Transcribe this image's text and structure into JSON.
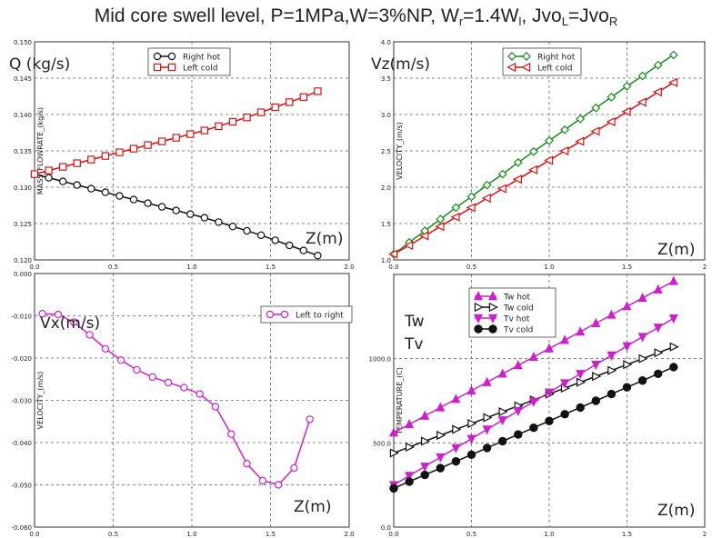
{
  "title": {
    "main": "Mid core swell level, P=1MPa,W=3%NP, W",
    "wr_sub": "r",
    "mid": "=1.4W",
    "wl_sub": "l",
    "jvo1": ", Jvo",
    "jvoL_sub": "L",
    "jvo2": "=Jvo",
    "jvoR_sub": "R"
  },
  "chart_data": [
    {
      "id": "q",
      "type": "line",
      "corner_label": "Q (kg/s)",
      "corner_label2": "",
      "xlabel_inline": "Z(m)",
      "ylabel": "MASS_FLOWRATE_(kg/s)",
      "xlim": [
        0,
        2.0
      ],
      "ylim": [
        0.12,
        0.15
      ],
      "xticks": [
        0.0,
        0.5,
        1.0,
        1.5,
        2.0
      ],
      "xtick_labels": [
        "0.0",
        "0.5",
        "1.0",
        "1.5",
        "2.0"
      ],
      "yticks": [
        0.12,
        0.125,
        0.13,
        0.135,
        0.14,
        0.145,
        0.15
      ],
      "ytick_labels": [
        "0.120",
        "0.125",
        "0.130",
        "0.135",
        "0.140",
        "0.145",
        "0.150"
      ],
      "grid": true,
      "legend_position": "top-center",
      "series": [
        {
          "name": "Right hot",
          "color": "#111111",
          "marker": "circle",
          "x": [
            0.0,
            0.09,
            0.18,
            0.27,
            0.36,
            0.45,
            0.54,
            0.63,
            0.72,
            0.81,
            0.9,
            0.99,
            1.08,
            1.17,
            1.26,
            1.35,
            1.44,
            1.53,
            1.62,
            1.71,
            1.8
          ],
          "y": [
            0.1318,
            0.1313,
            0.1308,
            0.1303,
            0.1298,
            0.1293,
            0.1288,
            0.1283,
            0.1278,
            0.1273,
            0.1268,
            0.1263,
            0.1258,
            0.1252,
            0.1246,
            0.124,
            0.1234,
            0.1227,
            0.122,
            0.1213,
            0.1206
          ]
        },
        {
          "name": "Left cold",
          "color": "#dd1111",
          "marker": "square",
          "x": [
            0.0,
            0.09,
            0.18,
            0.27,
            0.36,
            0.45,
            0.54,
            0.63,
            0.72,
            0.81,
            0.9,
            0.99,
            1.08,
            1.17,
            1.26,
            1.35,
            1.44,
            1.53,
            1.62,
            1.71,
            1.8
          ],
          "y": [
            0.1318,
            0.1323,
            0.1328,
            0.1333,
            0.1338,
            0.1343,
            0.1348,
            0.1353,
            0.1358,
            0.1363,
            0.1368,
            0.1373,
            0.1378,
            0.1384,
            0.139,
            0.1396,
            0.1403,
            0.141,
            0.1417,
            0.1424,
            0.1432
          ]
        }
      ]
    },
    {
      "id": "vz",
      "type": "line",
      "corner_label": "Vz(m/s)",
      "corner_label2": "",
      "xlabel_inline": "Z(m)",
      "ylabel": "VELOCITY_(m/s)",
      "xlim": [
        0,
        2.0
      ],
      "ylim": [
        1.0,
        4.0
      ],
      "xticks": [
        0.0,
        0.5,
        1.0,
        1.5,
        2.0
      ],
      "xtick_labels": [
        "0.0",
        "0.5",
        "1.0",
        "1.5",
        "2"
      ],
      "yticks": [
        1.0,
        1.5,
        2.0,
        2.5,
        3.0,
        3.5,
        4.0
      ],
      "ytick_labels": [
        "1.0",
        "1.5",
        "2.0",
        "2.5",
        "3.0",
        "3.5",
        "4.0"
      ],
      "grid": true,
      "legend_position": "top-center",
      "series": [
        {
          "name": "Right hot",
          "color": "#1a8c1a",
          "marker": "diamond",
          "x": [
            0.0,
            0.1,
            0.2,
            0.3,
            0.4,
            0.5,
            0.6,
            0.7,
            0.8,
            0.9,
            1.0,
            1.1,
            1.2,
            1.3,
            1.4,
            1.5,
            1.6,
            1.7,
            1.8
          ],
          "y": [
            1.08,
            1.24,
            1.4,
            1.56,
            1.72,
            1.87,
            2.03,
            2.18,
            2.34,
            2.49,
            2.64,
            2.79,
            2.94,
            3.09,
            3.24,
            3.39,
            3.53,
            3.68,
            3.82
          ]
        },
        {
          "name": "Left cold",
          "color": "#dd1111",
          "marker": "triangle-left",
          "x": [
            0.0,
            0.1,
            0.2,
            0.3,
            0.4,
            0.5,
            0.6,
            0.7,
            0.8,
            0.9,
            1.0,
            1.1,
            1.2,
            1.3,
            1.4,
            1.5,
            1.6,
            1.7,
            1.8
          ],
          "y": [
            1.08,
            1.2,
            1.33,
            1.46,
            1.59,
            1.72,
            1.85,
            1.98,
            2.11,
            2.24,
            2.37,
            2.5,
            2.63,
            2.77,
            2.9,
            3.04,
            3.17,
            3.31,
            3.44
          ]
        }
      ]
    },
    {
      "id": "vx",
      "type": "line",
      "corner_label": "Vx(m/s)",
      "corner_label2": "",
      "xlabel_inline": "Z(m)",
      "ylabel": "VELOCITY_(m/s)",
      "xlim": [
        0,
        2.0
      ],
      "ylim": [
        -0.06,
        0.0
      ],
      "xticks": [
        0.0,
        0.5,
        1.0,
        1.5,
        2.0
      ],
      "xtick_labels": [
        "0.0",
        "0.5",
        "1.0",
        "1.5",
        "2.0"
      ],
      "yticks": [
        -0.06,
        -0.05,
        -0.04,
        -0.03,
        -0.02,
        -0.01,
        0.0
      ],
      "ytick_labels": [
        "-0.060",
        "-0.050",
        "-0.040",
        "-0.030",
        "-0.020",
        "-0.010",
        "0.000"
      ],
      "grid": true,
      "legend_position": "top-right",
      "series": [
        {
          "name": "Left to right",
          "color": "#cc22cc",
          "marker": "circle",
          "x": [
            0.05,
            0.15,
            0.25,
            0.35,
            0.45,
            0.55,
            0.65,
            0.75,
            0.85,
            0.95,
            1.05,
            1.15,
            1.25,
            1.35,
            1.45,
            1.55,
            1.65,
            1.75
          ],
          "y": [
            -0.0095,
            -0.0097,
            -0.0115,
            -0.0145,
            -0.0178,
            -0.0205,
            -0.0228,
            -0.0245,
            -0.0258,
            -0.027,
            -0.0285,
            -0.0315,
            -0.038,
            -0.045,
            -0.049,
            -0.05,
            -0.046,
            -0.0345
          ]
        }
      ]
    },
    {
      "id": "temp",
      "type": "line",
      "corner_label": "Tw",
      "corner_label2": "Tv",
      "xlabel_inline": "Z(m)",
      "ylabel": "TEMPERATURE_(C)",
      "xlim": [
        0,
        2.0
      ],
      "ylim": [
        0,
        1500
      ],
      "xticks": [
        0.0,
        0.5,
        1.0,
        1.5,
        2.0
      ],
      "xtick_labels": [
        "0.0",
        "0.5",
        "1.0",
        "1.5",
        "2"
      ],
      "yticks": [
        0,
        500,
        1000
      ],
      "ytick_labels": [
        "0.0",
        "500.0",
        "1000.0"
      ],
      "grid": true,
      "legend_position": "top-center",
      "series": [
        {
          "name": "Tw hot",
          "color": "#cc22cc",
          "marker": "triangle-up",
          "x": [
            0.0,
            0.1,
            0.2,
            0.3,
            0.4,
            0.5,
            0.6,
            0.7,
            0.8,
            0.9,
            1.0,
            1.1,
            1.2,
            1.3,
            1.4,
            1.5,
            1.6,
            1.7,
            1.8
          ],
          "y": [
            560,
            610,
            660,
            710,
            760,
            810,
            860,
            910,
            960,
            1010,
            1060,
            1110,
            1160,
            1210,
            1260,
            1310,
            1360,
            1410,
            1460
          ]
        },
        {
          "name": "Tw cold",
          "color": "#111111",
          "marker": "triangle-right",
          "x": [
            0.0,
            0.1,
            0.2,
            0.3,
            0.4,
            0.5,
            0.6,
            0.7,
            0.8,
            0.9,
            1.0,
            1.1,
            1.2,
            1.3,
            1.4,
            1.5,
            1.6,
            1.7,
            1.8
          ],
          "y": [
            440,
            475,
            510,
            545,
            580,
            615,
            650,
            685,
            720,
            755,
            790,
            825,
            860,
            895,
            930,
            965,
            1000,
            1035,
            1070
          ]
        },
        {
          "name": "Tv hot",
          "color": "#cc22cc",
          "marker": "triangle-down",
          "x": [
            0.0,
            0.1,
            0.2,
            0.3,
            0.4,
            0.5,
            0.6,
            0.7,
            0.8,
            0.9,
            1.0,
            1.1,
            1.2,
            1.3,
            1.4,
            1.5,
            1.6,
            1.7,
            1.8
          ],
          "y": [
            250,
            305,
            360,
            415,
            470,
            525,
            580,
            635,
            690,
            745,
            800,
            855,
            910,
            965,
            1020,
            1075,
            1130,
            1185,
            1240
          ]
        },
        {
          "name": "Tv cold",
          "color": "#111111",
          "marker": "circle-filled",
          "x": [
            0.0,
            0.1,
            0.2,
            0.3,
            0.4,
            0.5,
            0.6,
            0.7,
            0.8,
            0.9,
            1.0,
            1.1,
            1.2,
            1.3,
            1.4,
            1.5,
            1.6,
            1.7,
            1.8
          ],
          "y": [
            230,
            270,
            310,
            350,
            390,
            430,
            470,
            510,
            550,
            590,
            630,
            670,
            710,
            750,
            790,
            830,
            870,
            910,
            950
          ]
        }
      ]
    }
  ]
}
